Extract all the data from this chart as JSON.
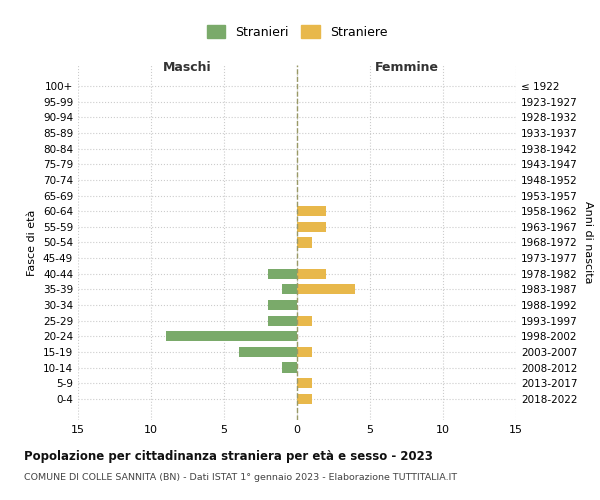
{
  "age_groups": [
    "100+",
    "95-99",
    "90-94",
    "85-89",
    "80-84",
    "75-79",
    "70-74",
    "65-69",
    "60-64",
    "55-59",
    "50-54",
    "45-49",
    "40-44",
    "35-39",
    "30-34",
    "25-29",
    "20-24",
    "15-19",
    "10-14",
    "5-9",
    "0-4"
  ],
  "birth_years": [
    "≤ 1922",
    "1923-1927",
    "1928-1932",
    "1933-1937",
    "1938-1942",
    "1943-1947",
    "1948-1952",
    "1953-1957",
    "1958-1962",
    "1963-1967",
    "1968-1972",
    "1973-1977",
    "1978-1982",
    "1983-1987",
    "1988-1992",
    "1993-1997",
    "1998-2002",
    "2003-2007",
    "2008-2012",
    "2013-2017",
    "2018-2022"
  ],
  "maschi": [
    0,
    0,
    0,
    0,
    0,
    0,
    0,
    0,
    0,
    0,
    0,
    0,
    2,
    1,
    2,
    2,
    9,
    4,
    1,
    0,
    0
  ],
  "femmine": [
    0,
    0,
    0,
    0,
    0,
    0,
    0,
    0,
    2,
    2,
    1,
    0,
    2,
    4,
    0,
    1,
    0,
    1,
    0,
    1,
    1
  ],
  "color_maschi": "#7aaa6a",
  "color_femmine": "#e8b84b",
  "title": "Popolazione per cittadinanza straniera per età e sesso - 2023",
  "subtitle": "COMUNE DI COLLE SANNITA (BN) - Dati ISTAT 1° gennaio 2023 - Elaborazione TUTTITALIA.IT",
  "ylabel_left": "Fasce di età",
  "ylabel_right": "Anni di nascita",
  "xlabel_maschi": "Maschi",
  "xlabel_femmine": "Femmine",
  "legend_maschi": "Stranieri",
  "legend_femmine": "Straniere",
  "xlim": 15,
  "background_color": "#ffffff",
  "grid_color": "#cccccc",
  "vline_color": "#aaaaaa"
}
